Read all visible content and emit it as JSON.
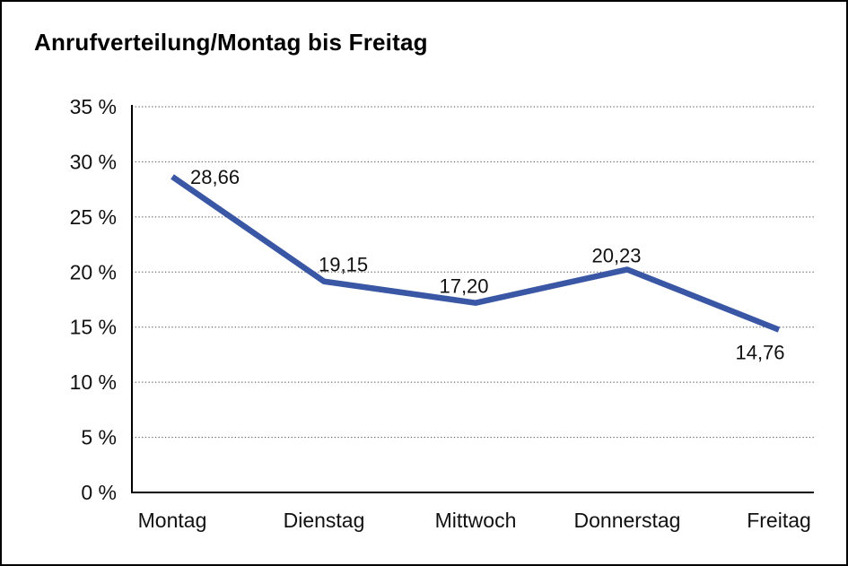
{
  "chart_data": {
    "type": "line",
    "title": "Anrufverteilung/Montag bis Freitag",
    "categories": [
      "Montag",
      "Dienstag",
      "Mittwoch",
      "Donnerstag",
      "Freitag"
    ],
    "values": [
      28.66,
      19.15,
      17.2,
      20.23,
      14.76
    ],
    "point_labels": [
      "28,66",
      "19,15",
      "17,20",
      "20,23",
      "14,76"
    ],
    "xlabel": "",
    "ylabel": "",
    "ylim": [
      0,
      35
    ],
    "ytick_step": 5,
    "ytick_labels": [
      "0 %",
      "5 %",
      "10 %",
      "15 %",
      "20 %",
      "25 %",
      "30 %",
      "35 %"
    ],
    "grid": "horizontal-dotted",
    "legend": "none",
    "line_color": "#3A57A5"
  },
  "colors": {
    "line": "#3A57A5",
    "grid": "#4d4d4d",
    "axis": "#000000",
    "text": "#111111",
    "background": "#ffffff",
    "border": "#000000"
  }
}
